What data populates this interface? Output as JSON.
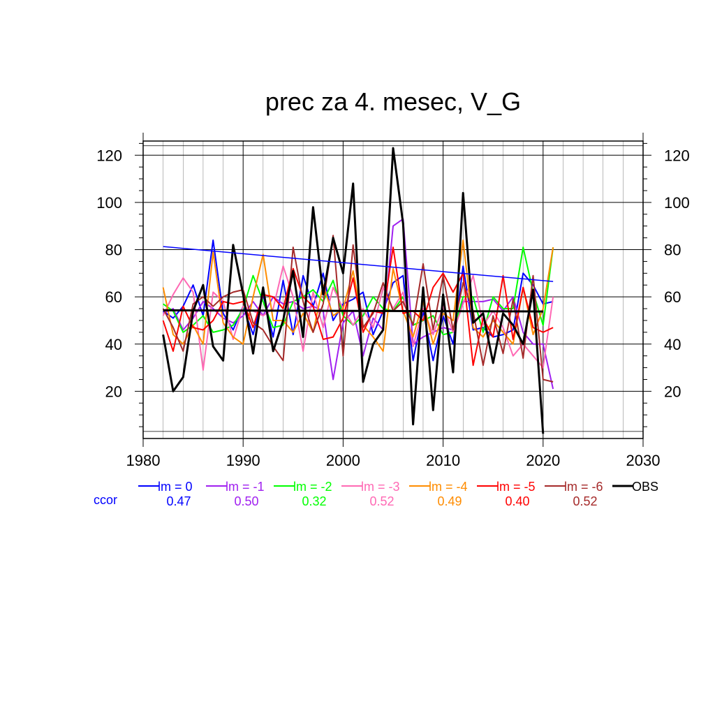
{
  "chart_data": {
    "type": "line",
    "title": "prec za 4. mesec, V_G",
    "xlim": [
      1980,
      2030
    ],
    "ylim": [
      0,
      126
    ],
    "x_ticks": [
      1980,
      1990,
      2000,
      2010,
      2020,
      2030
    ],
    "y_ticks": [
      20,
      40,
      60,
      80,
      100,
      120
    ],
    "grid": true,
    "years": [
      1982,
      1983,
      1984,
      1985,
      1986,
      1987,
      1988,
      1989,
      1990,
      1991,
      1992,
      1993,
      1994,
      1995,
      1996,
      1997,
      1998,
      1999,
      2000,
      2001,
      2002,
      2003,
      2004,
      2005,
      2006,
      2007,
      2008,
      2009,
      2010,
      2011,
      2012,
      2013,
      2014,
      2015,
      2016,
      2017,
      2018,
      2019,
      2020,
      2021
    ],
    "series": [
      {
        "name": "lm = 0",
        "color": "#0000ff",
        "ccor": "0.47",
        "values": [
          54,
          51,
          56,
          65,
          52,
          84,
          53,
          46,
          56,
          44,
          61,
          43,
          67,
          44,
          69,
          56,
          70,
          50,
          57,
          59,
          62,
          44,
          54,
          66,
          69,
          33,
          54,
          33,
          52,
          40,
          73,
          46,
          47,
          43,
          44,
          46,
          70,
          65,
          57,
          58
        ]
      },
      {
        "name": "lm = -1",
        "color": "#a020f0",
        "ccor": "0.50",
        "values": [
          53,
          55,
          46,
          51,
          58,
          55,
          51,
          49,
          52,
          58,
          52,
          60,
          57,
          58,
          55,
          56,
          54,
          25,
          49,
          54,
          35,
          51,
          46,
          90,
          93,
          40,
          43,
          45,
          47,
          46,
          58,
          58,
          58,
          59,
          54,
          60,
          45,
          40,
          40,
          21
        ]
      },
      {
        "name": "lm = -2",
        "color": "#00ff00",
        "ccor": "0.32",
        "values": [
          57,
          54,
          45,
          48,
          52,
          45,
          46,
          48,
          55,
          69,
          58,
          47,
          48,
          58,
          60,
          63,
          58,
          67,
          52,
          48,
          52,
          60,
          55,
          54,
          60,
          48,
          50,
          52,
          44,
          45,
          60,
          60,
          45,
          60,
          55,
          55,
          81,
          62,
          48,
          81
        ]
      },
      {
        "name": "lm = -3",
        "color": "#ff69b4",
        "ccor": "0.52",
        "values": [
          52,
          61,
          68,
          62,
          29,
          62,
          58,
          42,
          56,
          54,
          52,
          55,
          73,
          60,
          37,
          62,
          47,
          64,
          55,
          48,
          55,
          47,
          64,
          55,
          62,
          39,
          55,
          44,
          56,
          45,
          57,
          69,
          48,
          54,
          47,
          35,
          40,
          35,
          30,
          60
        ]
      },
      {
        "name": "lm = -4",
        "color": "#ff8c00",
        "ccor": "0.49",
        "values": [
          64,
          44,
          40,
          48,
          40,
          79,
          49,
          43,
          40,
          60,
          78,
          50,
          50,
          45,
          53,
          45,
          65,
          52,
          55,
          71,
          48,
          43,
          37,
          72,
          54,
          43,
          58,
          40,
          53,
          50,
          84,
          47,
          43,
          50,
          45,
          40,
          64,
          44,
          55,
          81
        ]
      },
      {
        "name": "lm = -5",
        "color": "#ff0000",
        "ccor": "0.40",
        "values": [
          50,
          37,
          56,
          47,
          46,
          50,
          58,
          57,
          58,
          47,
          61,
          60,
          55,
          72,
          60,
          56,
          42,
          43,
          51,
          68,
          45,
          54,
          53,
          81,
          53,
          54,
          50,
          64,
          70,
          62,
          70,
          31,
          51,
          43,
          69,
          42,
          64,
          47,
          45,
          47
        ]
      },
      {
        "name": "lm = -6",
        "color": "#a52a2a",
        "ccor": "0.52",
        "values": [
          55,
          47,
          37,
          57,
          60,
          56,
          60,
          62,
          63,
          49,
          46,
          39,
          33,
          81,
          58,
          45,
          57,
          86,
          35,
          82,
          47,
          53,
          66,
          54,
          58,
          48,
          74,
          46,
          69,
          46,
          66,
          54,
          31,
          52,
          36,
          59,
          34,
          69,
          25,
          24
        ]
      },
      {
        "name": "OBS",
        "color": "#000000",
        "ccor": "",
        "values": [
          44,
          20,
          26,
          54,
          65,
          39,
          33,
          82,
          61,
          36,
          64,
          37,
          50,
          71,
          43,
          98,
          61,
          85,
          70,
          108,
          24,
          40,
          46,
          123,
          91,
          6,
          64,
          12,
          61,
          28,
          104,
          49,
          53,
          32,
          53,
          48,
          40,
          63,
          2,
          null
        ]
      }
    ],
    "trend_lines": [
      {
        "color": "#0000ff",
        "x": [
          1982,
          2021
        ],
        "y": [
          81.3,
          66.5
        ]
      },
      {
        "color": "#000000",
        "x": [
          1982,
          2020
        ],
        "y": [
          54.3,
          53.8
        ]
      }
    ],
    "legend_position": "bottom",
    "legend_ccor_label": "ccor"
  }
}
